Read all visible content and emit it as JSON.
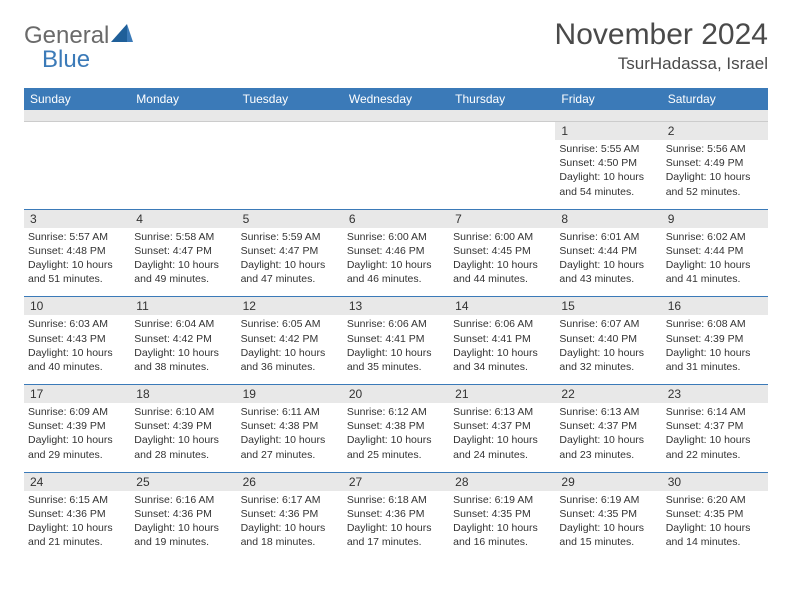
{
  "brand": {
    "part1": "General",
    "part2": "Blue"
  },
  "title": "November 2024",
  "location": "TsurHadassa, Israel",
  "colors": {
    "header_bg": "#3b7ab8",
    "header_text": "#ffffff",
    "daynum_bg": "#e8e8e8",
    "text": "#333333",
    "brand_gray": "#6a6a6a",
    "brand_blue": "#3b7ab8",
    "row_divider": "#3b7ab8"
  },
  "fonts": {
    "title_size": 30,
    "location_size": 17,
    "header_size": 12,
    "cell_size": 10.5
  },
  "day_labels": [
    "Sunday",
    "Monday",
    "Tuesday",
    "Wednesday",
    "Thursday",
    "Friday",
    "Saturday"
  ],
  "weeks": [
    [
      {
        "n": "",
        "sr": "",
        "ss": "",
        "dl": ""
      },
      {
        "n": "",
        "sr": "",
        "ss": "",
        "dl": ""
      },
      {
        "n": "",
        "sr": "",
        "ss": "",
        "dl": ""
      },
      {
        "n": "",
        "sr": "",
        "ss": "",
        "dl": ""
      },
      {
        "n": "",
        "sr": "",
        "ss": "",
        "dl": ""
      },
      {
        "n": "1",
        "sr": "Sunrise: 5:55 AM",
        "ss": "Sunset: 4:50 PM",
        "dl": "Daylight: 10 hours and 54 minutes."
      },
      {
        "n": "2",
        "sr": "Sunrise: 5:56 AM",
        "ss": "Sunset: 4:49 PM",
        "dl": "Daylight: 10 hours and 52 minutes."
      }
    ],
    [
      {
        "n": "3",
        "sr": "Sunrise: 5:57 AM",
        "ss": "Sunset: 4:48 PM",
        "dl": "Daylight: 10 hours and 51 minutes."
      },
      {
        "n": "4",
        "sr": "Sunrise: 5:58 AM",
        "ss": "Sunset: 4:47 PM",
        "dl": "Daylight: 10 hours and 49 minutes."
      },
      {
        "n": "5",
        "sr": "Sunrise: 5:59 AM",
        "ss": "Sunset: 4:47 PM",
        "dl": "Daylight: 10 hours and 47 minutes."
      },
      {
        "n": "6",
        "sr": "Sunrise: 6:00 AM",
        "ss": "Sunset: 4:46 PM",
        "dl": "Daylight: 10 hours and 46 minutes."
      },
      {
        "n": "7",
        "sr": "Sunrise: 6:00 AM",
        "ss": "Sunset: 4:45 PM",
        "dl": "Daylight: 10 hours and 44 minutes."
      },
      {
        "n": "8",
        "sr": "Sunrise: 6:01 AM",
        "ss": "Sunset: 4:44 PM",
        "dl": "Daylight: 10 hours and 43 minutes."
      },
      {
        "n": "9",
        "sr": "Sunrise: 6:02 AM",
        "ss": "Sunset: 4:44 PM",
        "dl": "Daylight: 10 hours and 41 minutes."
      }
    ],
    [
      {
        "n": "10",
        "sr": "Sunrise: 6:03 AM",
        "ss": "Sunset: 4:43 PM",
        "dl": "Daylight: 10 hours and 40 minutes."
      },
      {
        "n": "11",
        "sr": "Sunrise: 6:04 AM",
        "ss": "Sunset: 4:42 PM",
        "dl": "Daylight: 10 hours and 38 minutes."
      },
      {
        "n": "12",
        "sr": "Sunrise: 6:05 AM",
        "ss": "Sunset: 4:42 PM",
        "dl": "Daylight: 10 hours and 36 minutes."
      },
      {
        "n": "13",
        "sr": "Sunrise: 6:06 AM",
        "ss": "Sunset: 4:41 PM",
        "dl": "Daylight: 10 hours and 35 minutes."
      },
      {
        "n": "14",
        "sr": "Sunrise: 6:06 AM",
        "ss": "Sunset: 4:41 PM",
        "dl": "Daylight: 10 hours and 34 minutes."
      },
      {
        "n": "15",
        "sr": "Sunrise: 6:07 AM",
        "ss": "Sunset: 4:40 PM",
        "dl": "Daylight: 10 hours and 32 minutes."
      },
      {
        "n": "16",
        "sr": "Sunrise: 6:08 AM",
        "ss": "Sunset: 4:39 PM",
        "dl": "Daylight: 10 hours and 31 minutes."
      }
    ],
    [
      {
        "n": "17",
        "sr": "Sunrise: 6:09 AM",
        "ss": "Sunset: 4:39 PM",
        "dl": "Daylight: 10 hours and 29 minutes."
      },
      {
        "n": "18",
        "sr": "Sunrise: 6:10 AM",
        "ss": "Sunset: 4:39 PM",
        "dl": "Daylight: 10 hours and 28 minutes."
      },
      {
        "n": "19",
        "sr": "Sunrise: 6:11 AM",
        "ss": "Sunset: 4:38 PM",
        "dl": "Daylight: 10 hours and 27 minutes."
      },
      {
        "n": "20",
        "sr": "Sunrise: 6:12 AM",
        "ss": "Sunset: 4:38 PM",
        "dl": "Daylight: 10 hours and 25 minutes."
      },
      {
        "n": "21",
        "sr": "Sunrise: 6:13 AM",
        "ss": "Sunset: 4:37 PM",
        "dl": "Daylight: 10 hours and 24 minutes."
      },
      {
        "n": "22",
        "sr": "Sunrise: 6:13 AM",
        "ss": "Sunset: 4:37 PM",
        "dl": "Daylight: 10 hours and 23 minutes."
      },
      {
        "n": "23",
        "sr": "Sunrise: 6:14 AM",
        "ss": "Sunset: 4:37 PM",
        "dl": "Daylight: 10 hours and 22 minutes."
      }
    ],
    [
      {
        "n": "24",
        "sr": "Sunrise: 6:15 AM",
        "ss": "Sunset: 4:36 PM",
        "dl": "Daylight: 10 hours and 21 minutes."
      },
      {
        "n": "25",
        "sr": "Sunrise: 6:16 AM",
        "ss": "Sunset: 4:36 PM",
        "dl": "Daylight: 10 hours and 19 minutes."
      },
      {
        "n": "26",
        "sr": "Sunrise: 6:17 AM",
        "ss": "Sunset: 4:36 PM",
        "dl": "Daylight: 10 hours and 18 minutes."
      },
      {
        "n": "27",
        "sr": "Sunrise: 6:18 AM",
        "ss": "Sunset: 4:36 PM",
        "dl": "Daylight: 10 hours and 17 minutes."
      },
      {
        "n": "28",
        "sr": "Sunrise: 6:19 AM",
        "ss": "Sunset: 4:35 PM",
        "dl": "Daylight: 10 hours and 16 minutes."
      },
      {
        "n": "29",
        "sr": "Sunrise: 6:19 AM",
        "ss": "Sunset: 4:35 PM",
        "dl": "Daylight: 10 hours and 15 minutes."
      },
      {
        "n": "30",
        "sr": "Sunrise: 6:20 AM",
        "ss": "Sunset: 4:35 PM",
        "dl": "Daylight: 10 hours and 14 minutes."
      }
    ]
  ]
}
